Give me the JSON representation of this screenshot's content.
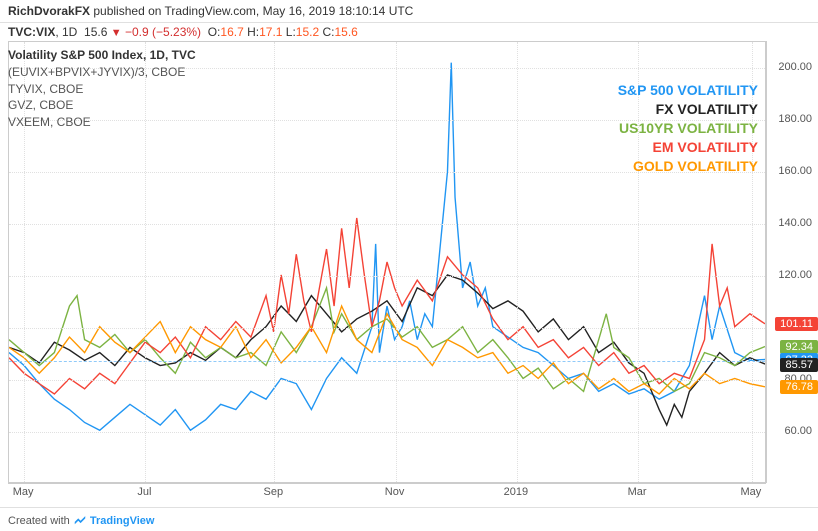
{
  "header": {
    "author": "RichDvorakFX",
    "published_text": " published on TradingView.com, ",
    "date": "May 16, 2019 18:10:14 UTC"
  },
  "ohlc": {
    "symbol": "TVC:VIX",
    "interval": ", 1D",
    "last": "15.6",
    "change": "−0.9",
    "change_pct": "(−5.23%)",
    "o": "16.7",
    "h": "17.1",
    "l": "15.2",
    "c": "15.6"
  },
  "info_panel": {
    "title": "Volatility S&P 500 Index, 1D, TVC",
    "lines": [
      "(EUVIX+BPVIX+JYVIX)/3, CBOE",
      "TYVIX, CBOE",
      "GVZ, CBOE",
      "VXEEM, CBOE"
    ]
  },
  "legend": [
    {
      "label": "S&P 500 VOLATILITY",
      "color": "#2196f3"
    },
    {
      "label": "FX VOLATILITY",
      "color": "#222222"
    },
    {
      "label": "US10YR VOLATILITY",
      "color": "#7cb342"
    },
    {
      "label": "EM VOLATILITY",
      "color": "#f44336"
    },
    {
      "label": "GOLD VOLATILITY",
      "color": "#ff9800"
    }
  ],
  "yaxis": {
    "min": 40,
    "max": 210,
    "ticks": [
      60,
      80,
      100,
      120,
      140,
      160,
      180,
      200
    ],
    "labels": [
      "60.00",
      "80.00",
      "100.00",
      "120.00",
      "140.00",
      "160.00",
      "180.00",
      "200.00"
    ]
  },
  "xaxis": {
    "labels": [
      "May",
      "Jul",
      "Sep",
      "Nov",
      "2019",
      "Mar",
      "May"
    ],
    "positions_pct": [
      2,
      18,
      35,
      51,
      67,
      83,
      98
    ]
  },
  "price_tags": [
    {
      "value": "101.11",
      "y": 101.11,
      "color": "#f44336"
    },
    {
      "value": "92.34",
      "y": 92.34,
      "color": "#7cb342"
    },
    {
      "value": "87.33",
      "y": 87.33,
      "color": "#2196f3"
    },
    {
      "value": "85.57",
      "y": 85.57,
      "color": "#222222"
    },
    {
      "value": "76.78",
      "y": 76.78,
      "color": "#ff9800"
    }
  ],
  "ref_line_y": 87.33,
  "series": {
    "sp500": {
      "color": "#2196f3",
      "width": 1.4,
      "data": [
        [
          0,
          90
        ],
        [
          2,
          85
        ],
        [
          4,
          78
        ],
        [
          6,
          72
        ],
        [
          8,
          68
        ],
        [
          10,
          63
        ],
        [
          12,
          60
        ],
        [
          14,
          65
        ],
        [
          16,
          70
        ],
        [
          18,
          66
        ],
        [
          20,
          62
        ],
        [
          22,
          68
        ],
        [
          24,
          60
        ],
        [
          26,
          64
        ],
        [
          28,
          70
        ],
        [
          30,
          68
        ],
        [
          32,
          75
        ],
        [
          34,
          72
        ],
        [
          36,
          80
        ],
        [
          38,
          78
        ],
        [
          40,
          68
        ],
        [
          42,
          80
        ],
        [
          44,
          88
        ],
        [
          46,
          82
        ],
        [
          48,
          100
        ],
        [
          48.5,
          132
        ],
        [
          49,
          90
        ],
        [
          50,
          108
        ],
        [
          51,
          95
        ],
        [
          52,
          100
        ],
        [
          53,
          110
        ],
        [
          54,
          95
        ],
        [
          55,
          105
        ],
        [
          56,
          100
        ],
        [
          57,
          130
        ],
        [
          58,
          160
        ],
        [
          58.5,
          202
        ],
        [
          59,
          150
        ],
        [
          60,
          115
        ],
        [
          61,
          125
        ],
        [
          62,
          108
        ],
        [
          63,
          115
        ],
        [
          64,
          100
        ],
        [
          66,
          96
        ],
        [
          68,
          92
        ],
        [
          70,
          90
        ],
        [
          72,
          85
        ],
        [
          74,
          80
        ],
        [
          76,
          82
        ],
        [
          78,
          75
        ],
        [
          80,
          78
        ],
        [
          82,
          74
        ],
        [
          84,
          76
        ],
        [
          86,
          72
        ],
        [
          88,
          75
        ],
        [
          90,
          85
        ],
        [
          92,
          112
        ],
        [
          93,
          95
        ],
        [
          94,
          108
        ],
        [
          96,
          90
        ],
        [
          98,
          87
        ],
        [
          100,
          87.33
        ]
      ]
    },
    "fx": {
      "color": "#222222",
      "width": 1.4,
      "data": [
        [
          0,
          92
        ],
        [
          2,
          90
        ],
        [
          4,
          86
        ],
        [
          6,
          94
        ],
        [
          8,
          91
        ],
        [
          10,
          87
        ],
        [
          12,
          90
        ],
        [
          14,
          85
        ],
        [
          16,
          92
        ],
        [
          18,
          88
        ],
        [
          20,
          85
        ],
        [
          22,
          86
        ],
        [
          24,
          90
        ],
        [
          26,
          87
        ],
        [
          28,
          92
        ],
        [
          30,
          88
        ],
        [
          32,
          95
        ],
        [
          34,
          100
        ],
        [
          36,
          108
        ],
        [
          38,
          102
        ],
        [
          40,
          112
        ],
        [
          42,
          105
        ],
        [
          44,
          98
        ],
        [
          46,
          103
        ],
        [
          48,
          106
        ],
        [
          50,
          110
        ],
        [
          52,
          102
        ],
        [
          54,
          115
        ],
        [
          56,
          112
        ],
        [
          58,
          120
        ],
        [
          60,
          118
        ],
        [
          62,
          113
        ],
        [
          64,
          107
        ],
        [
          66,
          110
        ],
        [
          68,
          106
        ],
        [
          70,
          98
        ],
        [
          72,
          103
        ],
        [
          74,
          95
        ],
        [
          76,
          100
        ],
        [
          78,
          90
        ],
        [
          80,
          94
        ],
        [
          82,
          86
        ],
        [
          84,
          82
        ],
        [
          86,
          68
        ],
        [
          87,
          62
        ],
        [
          88,
          70
        ],
        [
          89,
          65
        ],
        [
          90,
          75
        ],
        [
          92,
          82
        ],
        [
          94,
          90
        ],
        [
          96,
          85
        ],
        [
          98,
          88
        ],
        [
          100,
          85.57
        ]
      ]
    },
    "us10yr": {
      "color": "#7cb342",
      "width": 1.4,
      "data": [
        [
          0,
          95
        ],
        [
          2,
          90
        ],
        [
          4,
          85
        ],
        [
          6,
          90
        ],
        [
          8,
          108
        ],
        [
          9,
          112
        ],
        [
          10,
          95
        ],
        [
          12,
          92
        ],
        [
          14,
          97
        ],
        [
          16,
          90
        ],
        [
          18,
          95
        ],
        [
          20,
          88
        ],
        [
          22,
          82
        ],
        [
          24,
          94
        ],
        [
          26,
          88
        ],
        [
          28,
          92
        ],
        [
          30,
          88
        ],
        [
          32,
          90
        ],
        [
          34,
          85
        ],
        [
          36,
          98
        ],
        [
          38,
          90
        ],
        [
          40,
          100
        ],
        [
          42,
          115
        ],
        [
          43,
          98
        ],
        [
          44,
          105
        ],
        [
          46,
          95
        ],
        [
          48,
          100
        ],
        [
          50,
          103
        ],
        [
          52,
          96
        ],
        [
          54,
          100
        ],
        [
          56,
          92
        ],
        [
          58,
          95
        ],
        [
          60,
          100
        ],
        [
          62,
          90
        ],
        [
          64,
          95
        ],
        [
          66,
          88
        ],
        [
          68,
          80
        ],
        [
          70,
          84
        ],
        [
          72,
          76
        ],
        [
          74,
          80
        ],
        [
          76,
          75
        ],
        [
          78,
          95
        ],
        [
          79,
          105
        ],
        [
          80,
          92
        ],
        [
          82,
          88
        ],
        [
          84,
          78
        ],
        [
          86,
          80
        ],
        [
          88,
          75
        ],
        [
          90,
          78
        ],
        [
          92,
          90
        ],
        [
          94,
          88
        ],
        [
          96,
          85
        ],
        [
          98,
          90
        ],
        [
          100,
          92.34
        ]
      ]
    },
    "em": {
      "color": "#f44336",
      "width": 1.4,
      "data": [
        [
          0,
          88
        ],
        [
          2,
          82
        ],
        [
          4,
          78
        ],
        [
          6,
          74
        ],
        [
          8,
          80
        ],
        [
          10,
          76
        ],
        [
          12,
          82
        ],
        [
          14,
          78
        ],
        [
          16,
          86
        ],
        [
          18,
          94
        ],
        [
          20,
          90
        ],
        [
          22,
          96
        ],
        [
          24,
          88
        ],
        [
          26,
          100
        ],
        [
          28,
          95
        ],
        [
          30,
          102
        ],
        [
          32,
          96
        ],
        [
          34,
          112
        ],
        [
          35,
          98
        ],
        [
          36,
          120
        ],
        [
          37,
          105
        ],
        [
          38,
          128
        ],
        [
          39,
          110
        ],
        [
          40,
          98
        ],
        [
          42,
          130
        ],
        [
          43,
          108
        ],
        [
          44,
          138
        ],
        [
          45,
          115
        ],
        [
          46,
          142
        ],
        [
          47,
          120
        ],
        [
          48,
          100
        ],
        [
          49,
          110
        ],
        [
          50,
          125
        ],
        [
          51,
          115
        ],
        [
          52,
          108
        ],
        [
          54,
          118
        ],
        [
          56,
          110
        ],
        [
          58,
          127
        ],
        [
          60,
          120
        ],
        [
          62,
          115
        ],
        [
          64,
          103
        ],
        [
          66,
          95
        ],
        [
          68,
          100
        ],
        [
          70,
          92
        ],
        [
          72,
          95
        ],
        [
          74,
          88
        ],
        [
          76,
          92
        ],
        [
          78,
          85
        ],
        [
          80,
          90
        ],
        [
          82,
          82
        ],
        [
          84,
          85
        ],
        [
          86,
          78
        ],
        [
          88,
          82
        ],
        [
          90,
          80
        ],
        [
          92,
          95
        ],
        [
          93,
          132
        ],
        [
          94,
          108
        ],
        [
          95,
          115
        ],
        [
          96,
          100
        ],
        [
          98,
          105
        ],
        [
          100,
          101.11
        ]
      ]
    },
    "gold": {
      "color": "#ff9800",
      "width": 1.4,
      "data": [
        [
          0,
          92
        ],
        [
          2,
          88
        ],
        [
          4,
          82
        ],
        [
          6,
          88
        ],
        [
          8,
          96
        ],
        [
          10,
          90
        ],
        [
          12,
          100
        ],
        [
          14,
          94
        ],
        [
          16,
          90
        ],
        [
          18,
          96
        ],
        [
          20,
          102
        ],
        [
          22,
          90
        ],
        [
          24,
          100
        ],
        [
          26,
          95
        ],
        [
          28,
          92
        ],
        [
          30,
          100
        ],
        [
          32,
          88
        ],
        [
          34,
          95
        ],
        [
          36,
          86
        ],
        [
          38,
          92
        ],
        [
          40,
          100
        ],
        [
          42,
          90
        ],
        [
          44,
          108
        ],
        [
          46,
          95
        ],
        [
          48,
          90
        ],
        [
          50,
          105
        ],
        [
          52,
          95
        ],
        [
          54,
          92
        ],
        [
          56,
          85
        ],
        [
          58,
          95
        ],
        [
          60,
          92
        ],
        [
          62,
          88
        ],
        [
          64,
          90
        ],
        [
          66,
          82
        ],
        [
          68,
          85
        ],
        [
          70,
          80
        ],
        [
          72,
          86
        ],
        [
          74,
          78
        ],
        [
          76,
          82
        ],
        [
          78,
          76
        ],
        [
          80,
          80
        ],
        [
          82,
          75
        ],
        [
          84,
          78
        ],
        [
          86,
          74
        ],
        [
          88,
          80
        ],
        [
          90,
          76
        ],
        [
          92,
          82
        ],
        [
          94,
          78
        ],
        [
          96,
          80
        ],
        [
          98,
          78
        ],
        [
          100,
          76.78
        ]
      ]
    }
  },
  "footer": {
    "text": "Created with ",
    "brand": "TradingView"
  }
}
